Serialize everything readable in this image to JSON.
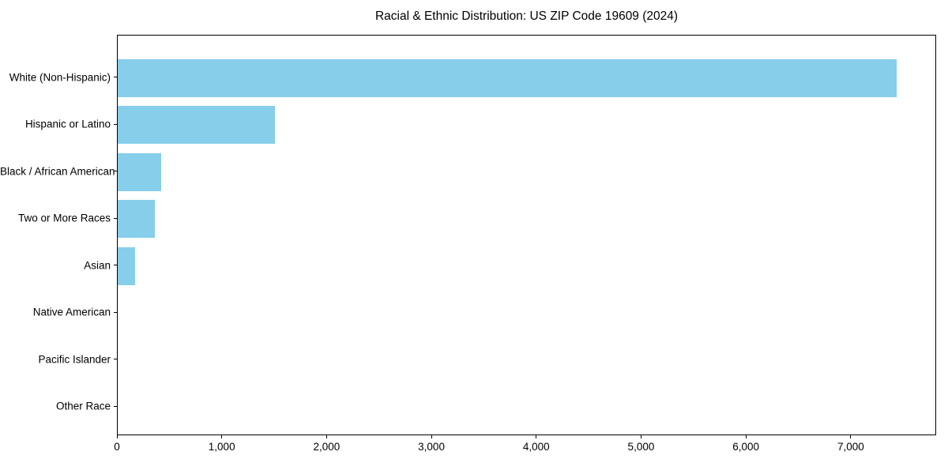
{
  "chart_data": {
    "type": "bar",
    "orientation": "horizontal",
    "title": "Racial & Ethnic Distribution: US ZIP Code 19609 (2024)",
    "categories": [
      "White (Non-Hispanic)",
      "Hispanic or Latino",
      "Black / African American",
      "Two or More Races",
      "Asian",
      "Native American",
      "Pacific Islander",
      "Other Race"
    ],
    "values": [
      7430,
      1500,
      415,
      355,
      165,
      0,
      0,
      0
    ],
    "xlabel": "",
    "ylabel": "",
    "xlim": [
      0,
      7800
    ],
    "x_ticks": [
      0,
      1000,
      2000,
      3000,
      4000,
      5000,
      6000,
      7000
    ],
    "x_tick_labels": [
      "0",
      "1,000",
      "2,000",
      "3,000",
      "4,000",
      "5,000",
      "6,000",
      "7,000"
    ],
    "bar_color": "#87CEEB",
    "grid": false,
    "legend": null
  }
}
